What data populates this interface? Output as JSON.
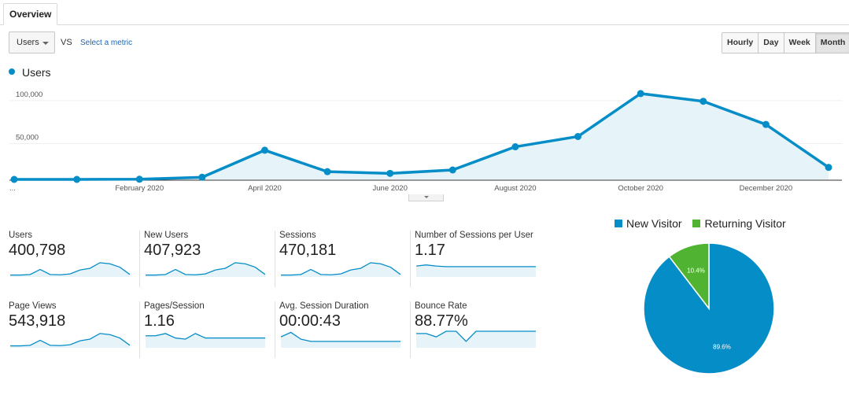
{
  "tabs": [
    {
      "label": "Overview",
      "active": true
    }
  ],
  "controls": {
    "metric_select": "Users",
    "vs_label": "VS",
    "select_metric_link": "Select a metric",
    "granularity": [
      "Hourly",
      "Day",
      "Week",
      "Month"
    ],
    "active_granularity": "Month"
  },
  "colors": {
    "primary": "#058dc7",
    "returning": "#50b432",
    "fill": "#e6f3f9"
  },
  "chart_data": [
    {
      "type": "area",
      "series": [
        {
          "name": "Users",
          "values": [
            0,
            0,
            200,
            2500,
            34000,
            9000,
            7000,
            11000,
            38000,
            50000,
            100000,
            91000,
            64000,
            14000
          ]
        }
      ],
      "x_tick_labels": [
        "...",
        "February 2020",
        "April 2020",
        "June 2020",
        "August 2020",
        "October 2020",
        "December 2020"
      ],
      "y_tick_labels": [
        "100,000",
        "50,000"
      ],
      "ylim": [
        0,
        110000
      ],
      "grid": true
    },
    {
      "type": "pie",
      "categories": [
        "New Visitor",
        "Returning Visitor"
      ],
      "values": [
        89.6,
        10.4
      ],
      "labels": [
        "89.6%",
        "10.4%"
      ],
      "legend": "top"
    }
  ],
  "scorecards": [
    {
      "label": "Users",
      "value": "400,798",
      "spark": [
        1,
        1,
        1.5,
        6,
        1.5,
        1.2,
        2,
        5.5,
        7,
        12,
        11,
        8,
        1.5
      ]
    },
    {
      "label": "New Users",
      "value": "407,923",
      "spark": [
        1,
        1,
        1.5,
        6,
        1.5,
        1.2,
        2,
        5.5,
        7,
        12,
        11,
        8,
        1.5
      ]
    },
    {
      "label": "Sessions",
      "value": "470,181",
      "spark": [
        1,
        1,
        1.5,
        6,
        1.5,
        1.2,
        2,
        5.5,
        7,
        12,
        11,
        8,
        1.5
      ]
    },
    {
      "label": "Number of Sessions per User",
      "value": "1.17",
      "spark": [
        9,
        10,
        9,
        8.5,
        8.5,
        8.5,
        8.5,
        8.5,
        8.5,
        8.5,
        8.5,
        8.5,
        8.5
      ]
    },
    {
      "label": "Page Views",
      "value": "543,918",
      "spark": [
        1,
        1,
        1.5,
        6,
        1.5,
        1.2,
        2,
        5.5,
        7,
        12,
        11,
        8,
        1.5
      ]
    },
    {
      "label": "Pages/Session",
      "value": "1.16",
      "spark": [
        10,
        10,
        12,
        8,
        7,
        12,
        8,
        8,
        8,
        8,
        8,
        8,
        8
      ]
    },
    {
      "label": "Avg. Session Duration",
      "value": "00:00:43",
      "spark": [
        9,
        13,
        7,
        5,
        5,
        5,
        5,
        5,
        5,
        5,
        5,
        5,
        5
      ]
    },
    {
      "label": "Bounce Rate",
      "value": "88.77%",
      "spark": [
        12,
        12,
        9,
        14,
        14,
        5,
        14,
        14,
        14,
        14,
        14,
        14,
        14
      ]
    }
  ]
}
